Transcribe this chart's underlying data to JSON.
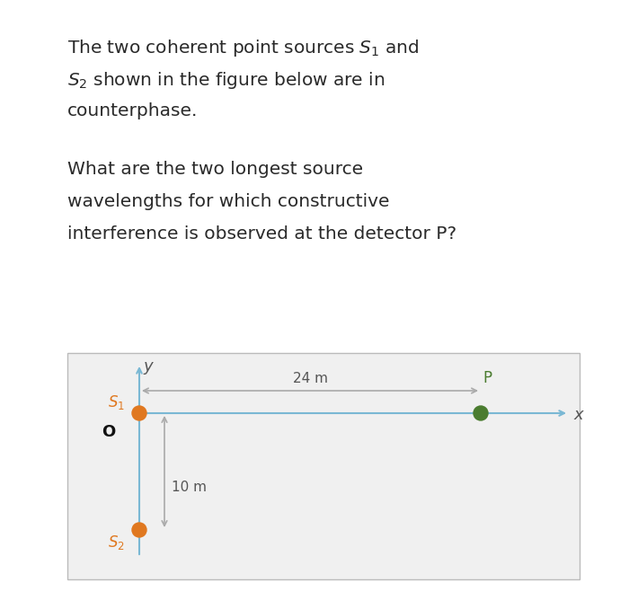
{
  "fig_bg_color": "#ffffff",
  "diagram_bg_color": "#f0f0f0",
  "text_lines": [
    [
      "The two coherent point sources ",
      "$\\mathit{S}_1$",
      " and"
    ],
    [
      "$\\mathit{S}_2$",
      " shown in the figure below are in"
    ],
    [
      "counterphase."
    ],
    [],
    [
      "What are the two longest source"
    ],
    [
      "wavelengths for which constructive"
    ],
    [
      "interference is observed at the detector P?"
    ]
  ],
  "source_color": "#e07820",
  "P_color": "#4a7c2f",
  "arrow_color": "#aaaaaa",
  "axis_color": "#7ab8d4",
  "label_S_color": "#e07820",
  "label_O_color": "#111111",
  "label_P_color": "#4a7c2f",
  "label_xy_color": "#555555",
  "dist_24m": "24 m",
  "dist_10m": "10 m"
}
